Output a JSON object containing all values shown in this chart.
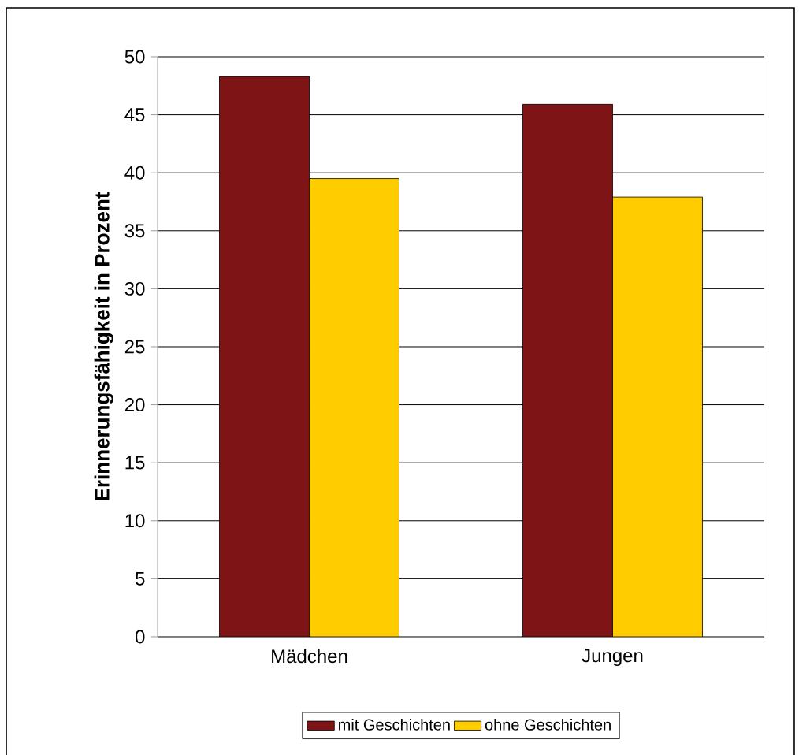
{
  "chart_data": {
    "type": "bar",
    "ylabel": "Erinnerungsfähigkeit in Prozent",
    "categories": [
      "Mädchen",
      "Jungen"
    ],
    "series": [
      {
        "name": "mit Geschichten",
        "color": "#7f1416",
        "values": [
          48.3,
          45.9
        ]
      },
      {
        "name": "ohne Geschichten",
        "color": "#ffcc00",
        "values": [
          39.5,
          37.9
        ]
      }
    ],
    "ylim": [
      0,
      50
    ],
    "yticks": [
      0,
      5,
      10,
      15,
      20,
      25,
      30,
      35,
      40,
      45,
      50
    ],
    "grid": "y",
    "legend": "bottom"
  }
}
